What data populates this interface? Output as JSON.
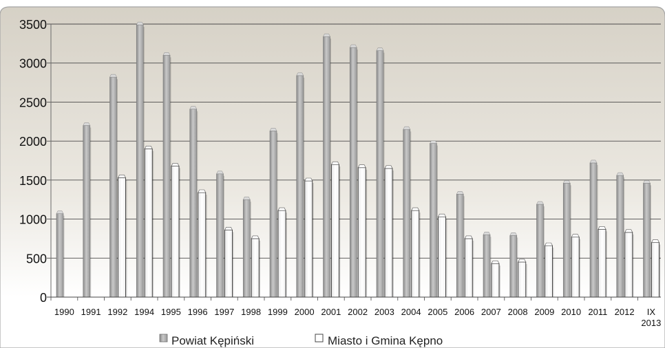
{
  "chart_data": {
    "type": "bar",
    "title": "",
    "xlabel": "",
    "ylabel": "",
    "ylim": [
      0,
      3500
    ],
    "yticks": [
      "0",
      "500",
      "1000",
      "1500",
      "2000",
      "2500",
      "3000",
      "3500"
    ],
    "grid": true,
    "legend_position": "bottom",
    "categories": [
      "1990",
      "1991",
      "1992",
      "1994",
      "1995",
      "1996",
      "1997",
      "1998",
      "1999",
      "2000",
      "2001",
      "2002",
      "2003",
      "2004",
      "2005",
      "2006",
      "2007",
      "2008",
      "2009",
      "2010",
      "2011",
      "2012",
      "IX 2013"
    ],
    "series": [
      {
        "name": "Powiat Kępiński",
        "color": "#a8a8a8",
        "values": [
          1070,
          2200,
          2820,
          3490,
          3100,
          2410,
          1580,
          1250,
          2130,
          2840,
          3340,
          3200,
          3160,
          2150,
          1970,
          1320,
          800,
          790,
          1190,
          1460,
          1720,
          1560,
          1460
        ]
      },
      {
        "name": "Miasto i Gmina Kępno",
        "color": "#ffffff",
        "values": [
          null,
          null,
          1530,
          1900,
          1680,
          1340,
          860,
          750,
          1110,
          1490,
          1700,
          1660,
          1650,
          1110,
          1030,
          750,
          430,
          450,
          660,
          770,
          870,
          830,
          700
        ]
      }
    ]
  }
}
